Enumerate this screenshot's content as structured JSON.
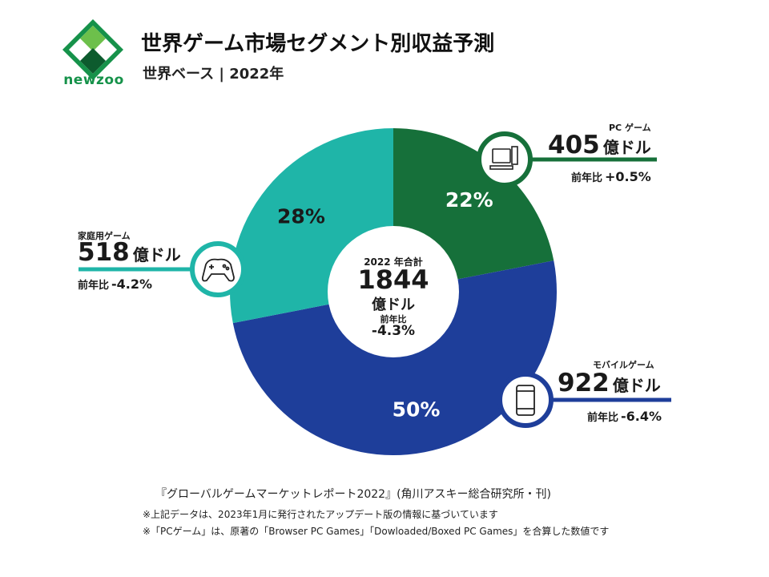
{
  "brand": {
    "name": "newzoo",
    "colors": {
      "primary": "#16924a",
      "dark": "#0d5b2e",
      "light": "#6dc04b"
    }
  },
  "header": {
    "title": "世界ゲーム市場セグメント別収益予測",
    "subtitle": "世界ベース | 2022年"
  },
  "center": {
    "label": "2022 年合計",
    "total": "1844",
    "unit": "億ドル",
    "yoy_label": "前年比",
    "yoy_value": "-4.3%"
  },
  "segments": {
    "pc": {
      "name": "PC ゲーム",
      "value": "405",
      "unit": "億ドル",
      "yoy_label": "前年比",
      "yoy_value": "+0.5%",
      "icon": "pc-icon",
      "color": "#16703a"
    },
    "mobile": {
      "name": "モバイルゲーム",
      "value": "922",
      "unit": "億ドル",
      "yoy_label": "前年比",
      "yoy_value": "-6.4%",
      "icon": "smartphone-icon",
      "color": "#1e3e9a"
    },
    "console": {
      "name": "家庭用ゲーム",
      "value": "518",
      "unit": "億ドル",
      "yoy_label": "前年比",
      "yoy_value": "-4.2%",
      "icon": "gamepad-icon",
      "color": "#1fb5a8"
    }
  },
  "chart_data": {
    "type": "pie",
    "title": "世界ゲーム市場セグメント別収益予測",
    "subtitle": "世界ベース | 2022年",
    "categories": [
      "PC ゲーム",
      "モバイルゲーム",
      "家庭用ゲーム"
    ],
    "values": [
      405,
      922,
      518
    ],
    "percent_labels": [
      "22%",
      "50%",
      "28%"
    ],
    "colors": [
      "#16703a",
      "#1e3e9a",
      "#1fb5a8"
    ],
    "total": 1844
  },
  "footer": {
    "source": "『グローバルゲームマーケットレポート2022』(角川アスキー総合研究所・刊)",
    "note1": "※上記データは、2023年1月に発行されたアップデート版の情報に基づいています",
    "note2": "※「PCゲーム」は、原著の「Browser PC Games」「Dowloaded/Boxed PC Games」を合算した数値です"
  }
}
